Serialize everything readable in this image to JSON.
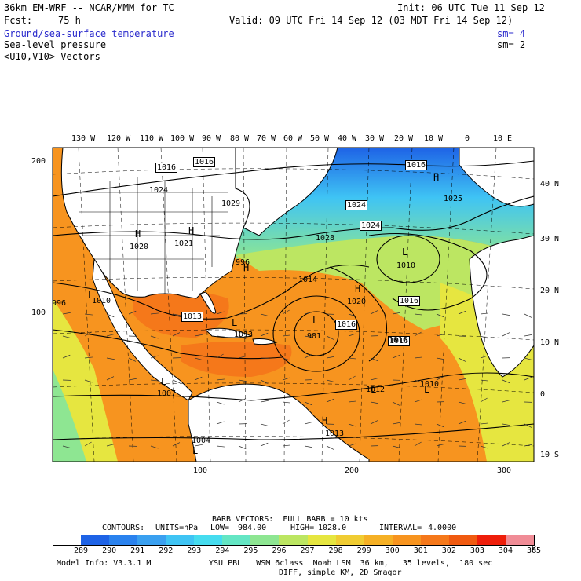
{
  "header": {
    "model_line": "36km EM-WRF -- NCAR/MMM for TC",
    "init": "Init: 06 UTC Tue 11 Sep 12",
    "fcst_label": "Fcst:",
    "fcst_value": "75 h",
    "valid": "Valid: 09 UTC Fri 14 Sep 12 (03 MDT Fri 14 Sep 12)",
    "fields": [
      {
        "name": "Ground/sea-surface temperature",
        "sm": "sm= 4"
      },
      {
        "name": "Sea-level pressure",
        "sm": "sm= 2"
      },
      {
        "name": "<U10,V10> Vectors",
        "sm": ""
      }
    ]
  },
  "map": {
    "top_lon_labels": [
      "130 W",
      "120 W",
      "110 W",
      "100 W",
      "90 W",
      "80 W",
      "70 W",
      "60 W",
      "50 W",
      "40 W",
      "30 W",
      "20 W",
      "10 W",
      "0",
      "10 E"
    ],
    "right_lat_labels": [
      "40 N",
      "30 N",
      "20 N",
      "10 N",
      "0",
      "10 S"
    ],
    "left_grid_labels": [
      "200",
      "100"
    ],
    "bottom_grid_labels": [
      "100",
      "200",
      "300"
    ],
    "pressure_labels": [
      {
        "text": "1016",
        "boxed": true
      },
      {
        "text": "1016",
        "boxed": true
      },
      {
        "text": "1016",
        "boxed": true
      },
      {
        "text": "1024",
        "boxed": false
      },
      {
        "text": "1029",
        "boxed": false
      },
      {
        "text": "1024",
        "boxed": true
      },
      {
        "text": "1024",
        "boxed": true
      },
      {
        "text": "1025",
        "boxed": false
      },
      {
        "text": "1028",
        "boxed": false
      },
      {
        "text": "1020",
        "boxed": false
      },
      {
        "text": "1021",
        "boxed": false
      },
      {
        "text": "1010",
        "boxed": false
      },
      {
        "text": "1014",
        "boxed": false
      },
      {
        "text": "996",
        "boxed": false
      },
      {
        "text": "1016",
        "boxed": true
      },
      {
        "text": "1020",
        "boxed": false
      },
      {
        "text": "1016",
        "boxed": true
      },
      {
        "text": "1010",
        "boxed": false
      },
      {
        "text": "1013",
        "boxed": true
      },
      {
        "text": "981",
        "boxed": false
      },
      {
        "text": "1016",
        "boxed": true
      },
      {
        "text": "1016",
        "boxed": true
      },
      {
        "text": "1013",
        "boxed": false
      },
      {
        "text": "1007",
        "boxed": false
      },
      {
        "text": "1012",
        "boxed": false
      },
      {
        "text": "1010",
        "boxed": false
      },
      {
        "text": "1004",
        "boxed": false
      },
      {
        "text": "1013",
        "boxed": false
      },
      {
        "text": "996",
        "boxed": false
      }
    ],
    "centers": [
      "H",
      "H",
      "H",
      "H",
      "H",
      "L",
      "L",
      "L",
      "L",
      "L",
      "L",
      "L",
      "L",
      "H"
    ]
  },
  "footer": {
    "barb_vectors": "BARB VECTORS:  FULL BARB = 10 kts",
    "contours_label": "CONTOURS:",
    "units": "UNITS=hPa",
    "low_label": "LOW=",
    "low_value": "984.00",
    "high_label": "HIGH=",
    "high_value": "1028.0",
    "interval_label": "INTERVAL=",
    "interval_value": "4.0000",
    "colorbar_labels": [
      "289",
      "290",
      "291",
      "292",
      "293",
      "294",
      "295",
      "296",
      "297",
      "298",
      "299",
      "300",
      "301",
      "302",
      "303",
      "304",
      "305"
    ],
    "colorbar_unit": "K",
    "colorbar_colors": [
      "#ffffff",
      "#1e63e6",
      "#2a82ee",
      "#3aa0f0",
      "#3fc4f4",
      "#46dcef",
      "#64e6c4",
      "#8ee692",
      "#bce662",
      "#e6e640",
      "#f0cc32",
      "#f5b025",
      "#f7941f",
      "#f5781a",
      "#f05a10",
      "#ee1e0a",
      "#f08c96"
    ],
    "model_info": "Model Info: V3.3.1 M",
    "physics": "YSU PBL   WSM 6class  Noah LSM  36 km,   35 levels,  180 sec",
    "diffusion": "DIFF, simple KM, 2D Smagor"
  }
}
